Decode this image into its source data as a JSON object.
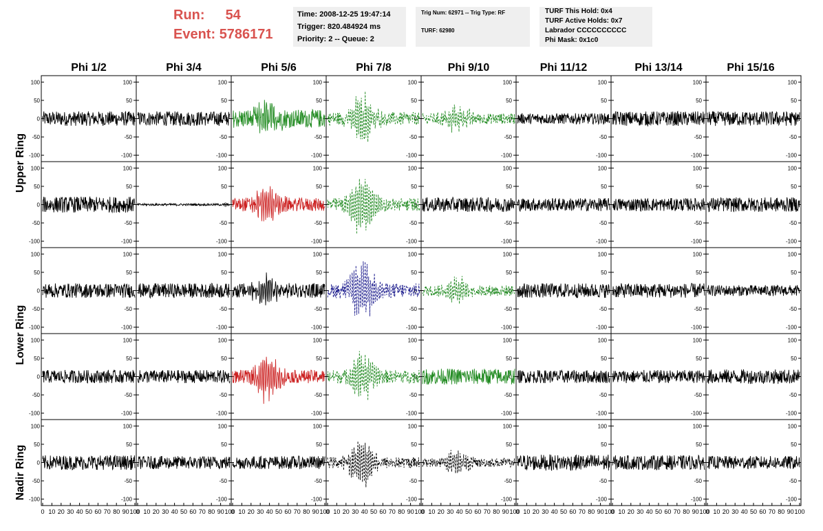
{
  "run_label": "Run:",
  "run_value": "54",
  "event_label": "Event:",
  "event_value": "5786171",
  "info_panel_1": [
    "Time: 2008-12-25 19:47:14",
    "Trigger: 820.484924 ms",
    "Priority: 2 -- Queue: 2"
  ],
  "info_panel_2": [
    "Trig Num: 62971 -- Trig Type: RF",
    "TURF: 62980"
  ],
  "info_panel_3": [
    "TURF This Hold: 0x4",
    "TURF Active Holds: 0x7",
    "Labrador CCCCCCCCCC",
    "Phi Mask: 0x1c0"
  ],
  "colors": {
    "black": "#000000",
    "green": "#228b22",
    "red": "#cc2222",
    "blue": "#1a1a8c",
    "run_text": "#d9534f",
    "panel_bg": "#efefef"
  },
  "chart_data": {
    "type": "line",
    "title": "",
    "xlabel": "",
    "ylabel": "",
    "xlim": [
      0,
      100
    ],
    "ylim": [
      -110,
      110
    ],
    "columns": [
      "Phi 1/2",
      "Phi 3/4",
      "Phi 5/6",
      "Phi 7/8",
      "Phi 9/10",
      "Phi 11/12",
      "Phi 13/14",
      "Phi 15/16"
    ],
    "rows": [
      "Upper Ring",
      "Upper Ring",
      "Lower Ring",
      "Lower Ring",
      "Nadir Ring"
    ],
    "row_labels": [
      "Upper Ring",
      "Lower Ring",
      "Nadir Ring"
    ],
    "y_ticks": [
      -100,
      -50,
      0,
      50,
      100
    ],
    "x_tick_labels": [
      "0",
      "10",
      "20",
      "30",
      "40",
      "50",
      "60",
      "70",
      "80",
      "90",
      "100"
    ],
    "traces": [
      [
        {
          "color": "black",
          "style": "solid",
          "amp": 20,
          "burst": 0
        },
        {
          "color": "black",
          "style": "solid",
          "amp": 20,
          "burst": 0
        },
        {
          "color": "green",
          "style": "solid",
          "amp": 25,
          "burst": 40
        },
        {
          "color": "green",
          "style": "dashed",
          "amp": 18,
          "burst": 70
        },
        {
          "color": "green",
          "style": "dashed",
          "amp": 15,
          "burst": 35
        },
        {
          "color": "black",
          "style": "solid",
          "amp": 15,
          "burst": 0
        },
        {
          "color": "black",
          "style": "solid",
          "amp": 20,
          "burst": 0
        },
        {
          "color": "black",
          "style": "solid",
          "amp": 20,
          "burst": 0
        }
      ],
      [
        {
          "color": "black",
          "style": "solid",
          "amp": 22,
          "burst": 0
        },
        {
          "color": "black",
          "style": "solid",
          "amp": 3,
          "burst": 0
        },
        {
          "color": "red",
          "style": "solid",
          "amp": 18,
          "burst": 50
        },
        {
          "color": "green",
          "style": "dashed",
          "amp": 18,
          "burst": 80
        },
        {
          "color": "black",
          "style": "solid",
          "amp": 20,
          "burst": 0
        },
        {
          "color": "black",
          "style": "solid",
          "amp": 18,
          "burst": 0
        },
        {
          "color": "black",
          "style": "solid",
          "amp": 18,
          "burst": 0
        },
        {
          "color": "black",
          "style": "solid",
          "amp": 20,
          "burst": 0
        }
      ],
      [
        {
          "color": "black",
          "style": "solid",
          "amp": 20,
          "burst": 0
        },
        {
          "color": "black",
          "style": "solid",
          "amp": 20,
          "burst": 0
        },
        {
          "color": "black",
          "style": "solid",
          "amp": 20,
          "burst": 35
        },
        {
          "color": "blue",
          "style": "dashed",
          "amp": 20,
          "burst": 85
        },
        {
          "color": "green",
          "style": "dashed",
          "amp": 15,
          "burst": 35
        },
        {
          "color": "black",
          "style": "solid",
          "amp": 20,
          "burst": 0
        },
        {
          "color": "black",
          "style": "solid",
          "amp": 20,
          "burst": 0
        },
        {
          "color": "black",
          "style": "solid",
          "amp": 15,
          "burst": 0
        }
      ],
      [
        {
          "color": "black",
          "style": "solid",
          "amp": 18,
          "burst": 0
        },
        {
          "color": "black",
          "style": "solid",
          "amp": 18,
          "burst": 0
        },
        {
          "color": "red",
          "style": "solid",
          "amp": 18,
          "burst": 70
        },
        {
          "color": "green",
          "style": "dashed",
          "amp": 18,
          "burst": 70
        },
        {
          "color": "green",
          "style": "solid",
          "amp": 22,
          "burst": 0
        },
        {
          "color": "black",
          "style": "solid",
          "amp": 18,
          "burst": 0
        },
        {
          "color": "black",
          "style": "solid",
          "amp": 18,
          "burst": 0
        },
        {
          "color": "black",
          "style": "solid",
          "amp": 20,
          "burst": 0
        }
      ],
      [
        {
          "color": "black",
          "style": "solid",
          "amp": 20,
          "burst": 0
        },
        {
          "color": "black",
          "style": "solid",
          "amp": 18,
          "burst": 0
        },
        {
          "color": "black",
          "style": "solid",
          "amp": 18,
          "burst": 0
        },
        {
          "color": "black",
          "style": "dashed",
          "amp": 15,
          "burst": 70
        },
        {
          "color": "black",
          "style": "dashed",
          "amp": 12,
          "burst": 35
        },
        {
          "color": "black",
          "style": "solid",
          "amp": 22,
          "burst": 0
        },
        {
          "color": "black",
          "style": "solid",
          "amp": 20,
          "burst": 0
        },
        {
          "color": "black",
          "style": "solid",
          "amp": 18,
          "burst": 0
        }
      ]
    ]
  }
}
